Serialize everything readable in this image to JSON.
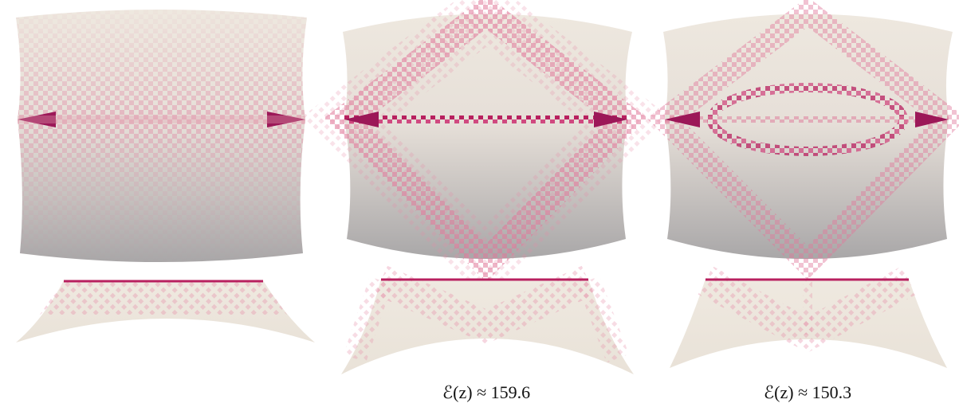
{
  "captions": [
    "ℰ(z) ≈ 159.6",
    "ℰ(z) ≈ 150.3"
  ]
}
